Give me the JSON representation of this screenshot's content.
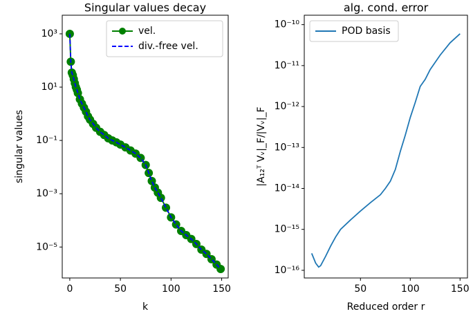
{
  "chart_data": [
    {
      "type": "line",
      "title": "Singular values decay",
      "xlabel": "k",
      "ylabel": "singular values",
      "yscale": "log",
      "legend": "upper right",
      "xlim": [
        -7.45,
        156.45
      ],
      "xticks": [
        0,
        50,
        100,
        150
      ],
      "ylim": [
        6.9e-07,
        5000
      ],
      "yticks": [
        {
          "value": 1000,
          "label": "10³"
        },
        {
          "value": 10,
          "label": "10¹"
        },
        {
          "value": 0.1,
          "label": "10⁻¹"
        },
        {
          "value": 0.001,
          "label": "10⁻³"
        },
        {
          "value": 1e-05,
          "label": "10⁻⁵"
        }
      ],
      "x": [
        0,
        1,
        2,
        3,
        4,
        5,
        6,
        7,
        8,
        10,
        12,
        14,
        16,
        18,
        20,
        23,
        26,
        30,
        34,
        38,
        42,
        46,
        50,
        55,
        60,
        65,
        70,
        75,
        78,
        81,
        84,
        87,
        90,
        95,
        100,
        105,
        110,
        115,
        120,
        125,
        130,
        135,
        140,
        145,
        149
      ],
      "series": [
        {
          "name": "vel.",
          "color": "#008000",
          "marker": "o",
          "linestyle": "-",
          "values": [
            1000,
            90,
            35,
            28,
            20,
            14,
            10,
            8,
            6,
            3.5,
            2.4,
            1.7,
            1.2,
            0.8,
            0.6,
            0.42,
            0.3,
            0.21,
            0.16,
            0.12,
            0.1,
            0.085,
            0.07,
            0.055,
            0.042,
            0.032,
            0.022,
            0.012,
            0.006,
            0.003,
            0.0017,
            0.0011,
            0.0007,
            0.0003,
            0.00013,
            7e-05,
            4e-05,
            2.8e-05,
            2e-05,
            1.3e-05,
            8e-06,
            5.5e-06,
            3.5e-06,
            2.2e-06,
            1.5e-06
          ]
        },
        {
          "name": "div.-free vel.",
          "color": "#0000ff",
          "linestyle": "--",
          "values": [
            1000,
            90,
            35,
            28,
            20,
            14,
            10,
            8,
            6,
            3.5,
            2.4,
            1.7,
            1.2,
            0.8,
            0.6,
            0.42,
            0.3,
            0.21,
            0.16,
            0.12,
            0.1,
            0.085,
            0.07,
            0.055,
            0.042,
            0.032,
            0.022,
            0.012,
            0.006,
            0.003,
            0.0017,
            0.0011,
            0.0007,
            0.0003,
            0.00013,
            7e-05,
            4e-05,
            2.8e-05,
            2e-05,
            1.3e-05,
            8e-06,
            5.5e-06,
            3.5e-06,
            2.2e-06,
            1.5e-06
          ]
        }
      ]
    },
    {
      "type": "line",
      "title": "alg. cond. error",
      "xlabel": "Reduced order r",
      "ylabel": "|A₁₂ᵀ Vᵥ|_F/|Vᵥ|_F",
      "yscale": "log",
      "legend": "upper left",
      "xlim": [
        -6.45,
        157.45
      ],
      "xticks": [
        50,
        100,
        150
      ],
      "ylim": [
        6.5e-17,
        1.7e-10
      ],
      "yticks": [
        {
          "value": 1e-10,
          "label": "10⁻¹⁰"
        },
        {
          "value": 1e-11,
          "label": "10⁻¹¹"
        },
        {
          "value": 1e-12,
          "label": "10⁻¹²"
        },
        {
          "value": 1e-13,
          "label": "10⁻¹³"
        },
        {
          "value": 1e-14,
          "label": "10⁻¹⁴"
        },
        {
          "value": 1e-15,
          "label": "10⁻¹⁵"
        },
        {
          "value": 1e-16,
          "label": "10⁻¹⁶"
        }
      ],
      "x": [
        1,
        5,
        8,
        10,
        15,
        20,
        25,
        30,
        40,
        50,
        60,
        70,
        75,
        80,
        85,
        90,
        95,
        100,
        105,
        110,
        115,
        120,
        130,
        140,
        150
      ],
      "series": [
        {
          "name": "POD basis",
          "color": "#1f77b4",
          "linestyle": "-",
          "values": [
            2.6e-16,
            1.5e-16,
            1.2e-16,
            1.3e-16,
            2.2e-16,
            3.9e-16,
            6.5e-16,
            1e-15,
            1.7e-15,
            2.8e-15,
            4.5e-15,
            7e-15,
            1e-14,
            1.5e-14,
            2.9e-14,
            8e-14,
            2e-13,
            5.4e-13,
            1.26e-12,
            3.1e-12,
            4.6e-12,
            8e-12,
            1.8e-11,
            3.6e-11,
            6e-11
          ]
        }
      ]
    }
  ]
}
